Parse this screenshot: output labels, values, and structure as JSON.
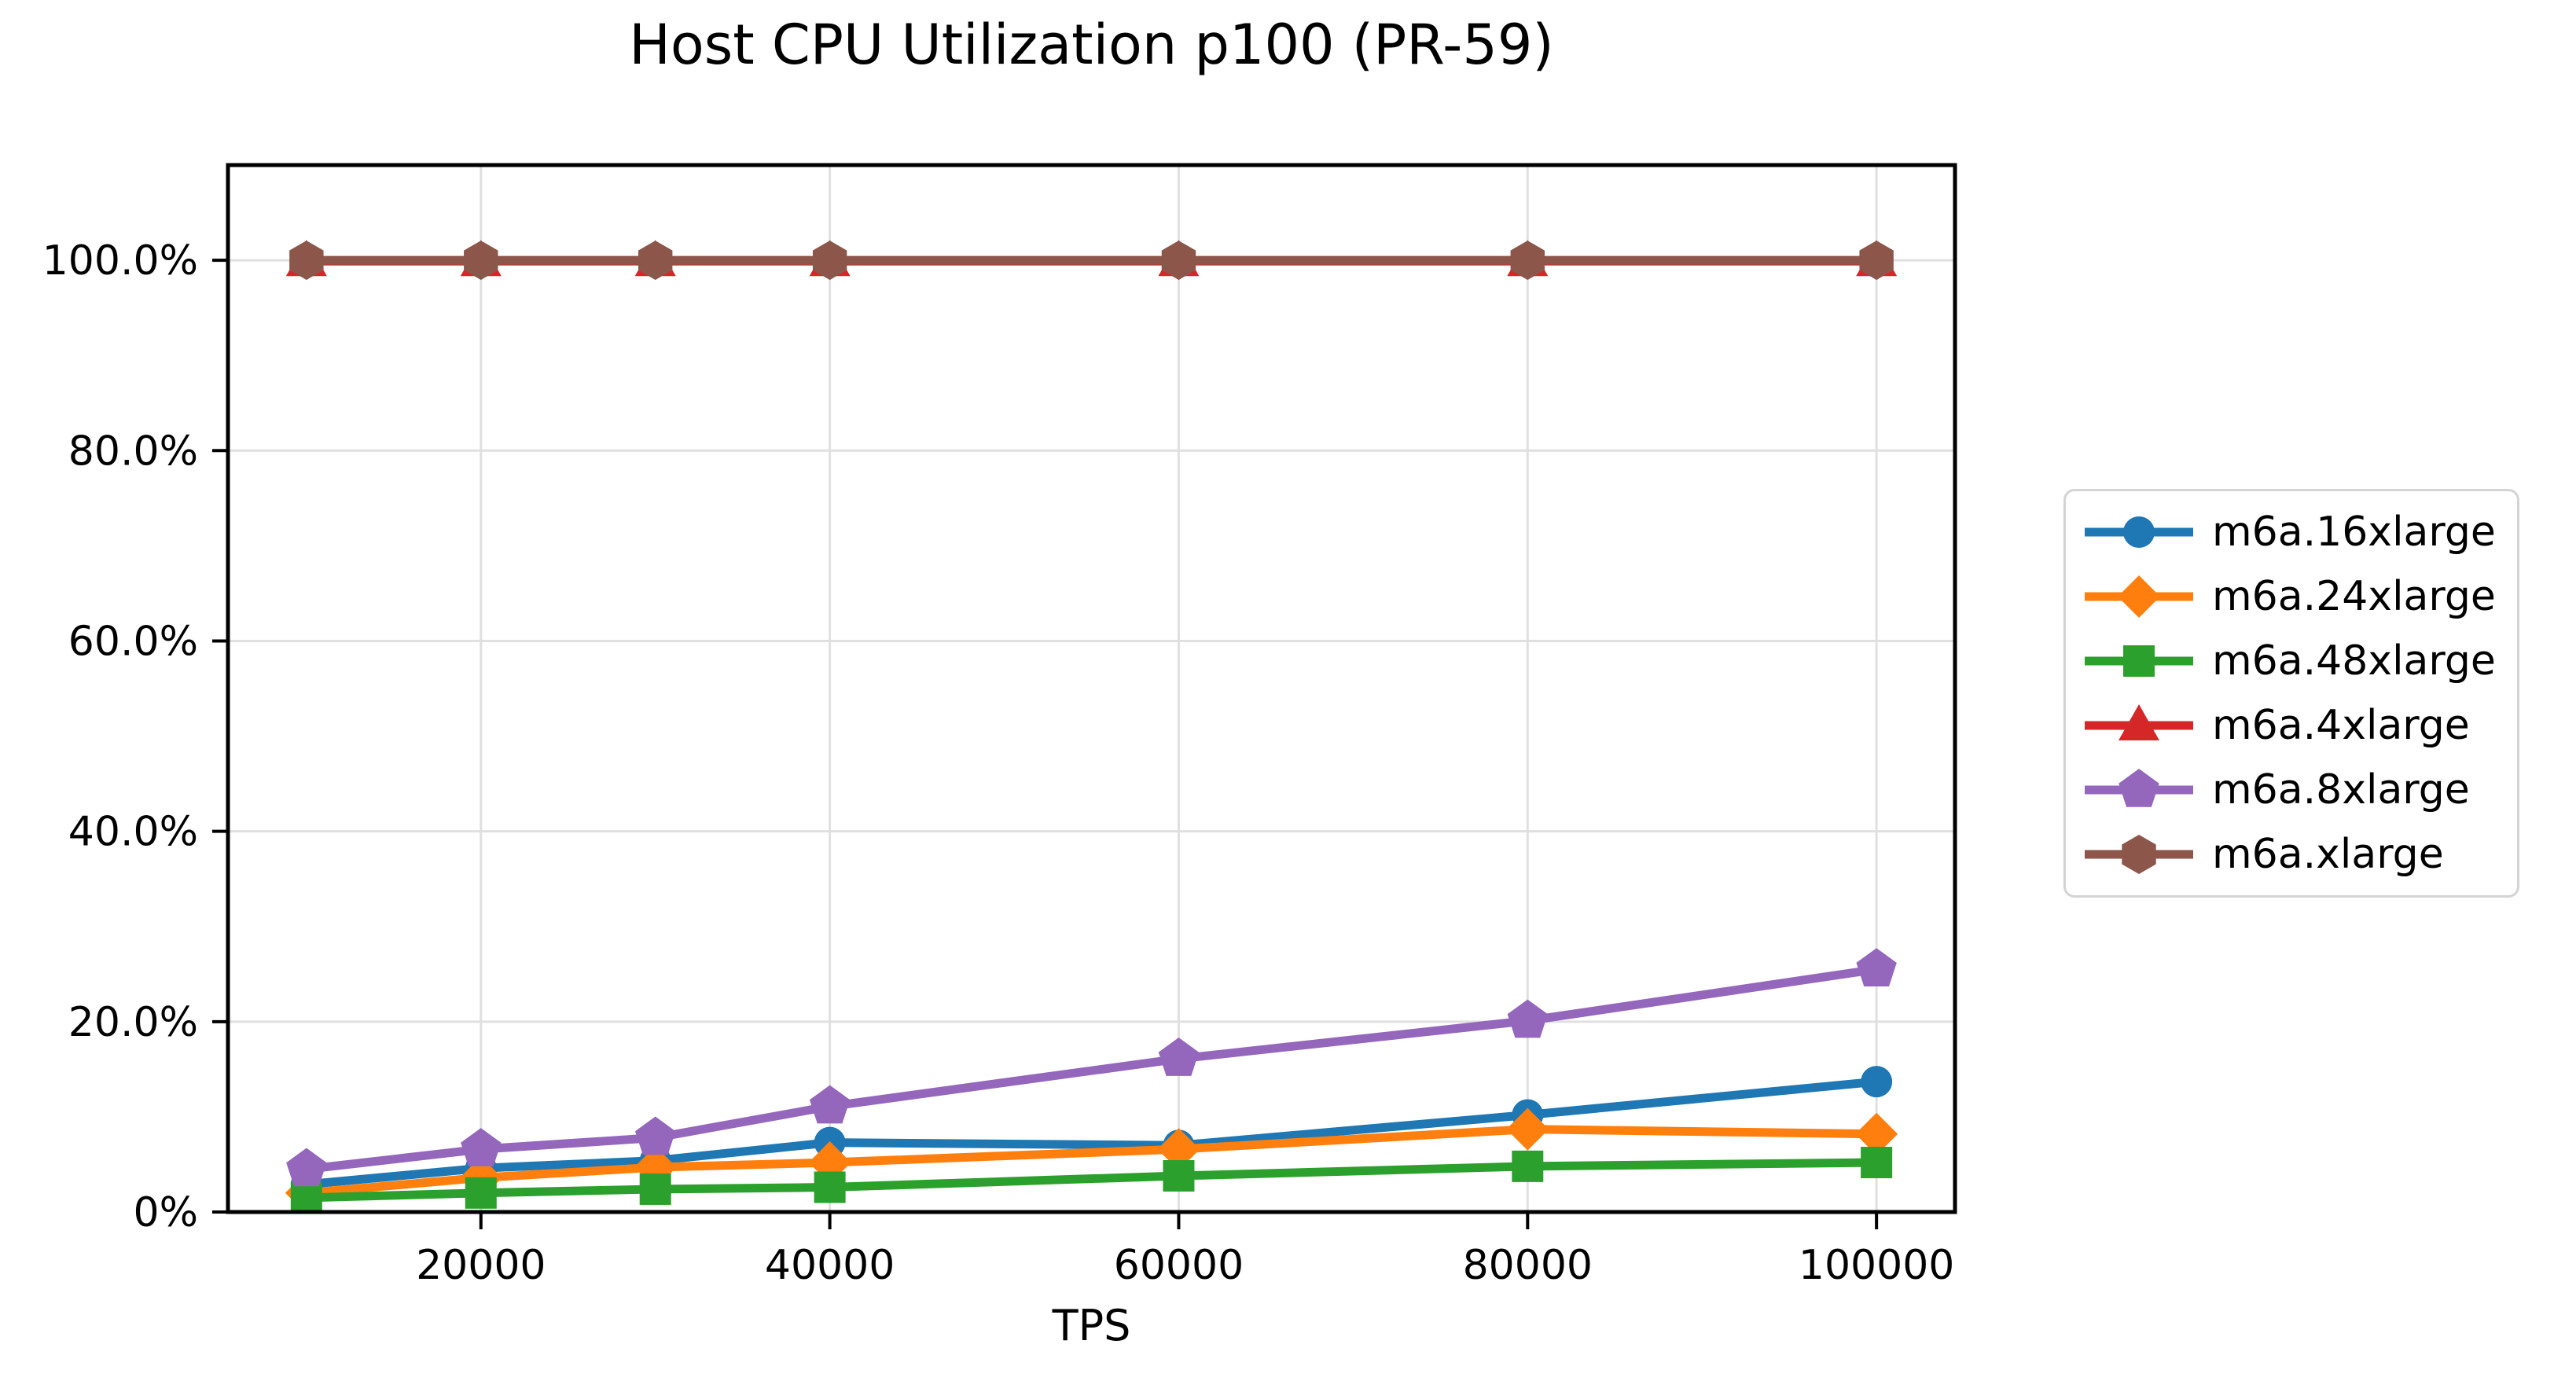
{
  "chart_data": {
    "type": "line",
    "title": "Host CPU Utilization p100 (PR-59)",
    "xlabel": "TPS",
    "ylabel": "",
    "x": [
      10000,
      20000,
      30000,
      40000,
      60000,
      80000,
      100000
    ],
    "xlim": [
      5500,
      104500
    ],
    "ylim": [
      0,
      110
    ],
    "xticks": [
      20000,
      40000,
      60000,
      80000,
      100000
    ],
    "xtick_labels": [
      "20000",
      "40000",
      "60000",
      "80000",
      "100000"
    ],
    "yticks": [
      0,
      20,
      40,
      60,
      80,
      100
    ],
    "ytick_labels": [
      "0%",
      "20.0%",
      "40.0%",
      "60.0%",
      "80.0%",
      "100.0%"
    ],
    "grid": true,
    "legend_position": "right",
    "series": [
      {
        "name": "m6a.16xlarge",
        "color": "#1f77b4",
        "marker": "circle",
        "values": [
          2.9,
          4.6,
          5.4,
          7.3,
          7.0,
          10.2,
          13.7
        ]
      },
      {
        "name": "m6a.24xlarge",
        "color": "#ff7f0e",
        "marker": "diamond",
        "values": [
          2.0,
          3.6,
          4.7,
          5.2,
          6.6,
          8.7,
          8.2
        ]
      },
      {
        "name": "m6a.48xlarge",
        "color": "#2ca02c",
        "marker": "square",
        "values": [
          1.5,
          2.0,
          2.4,
          2.6,
          3.8,
          4.8,
          5.2
        ]
      },
      {
        "name": "m6a.4xlarge",
        "color": "#d62728",
        "marker": "triangle-up",
        "values": [
          99.9,
          99.9,
          99.9,
          99.9,
          99.9,
          99.9,
          99.9
        ]
      },
      {
        "name": "m6a.8xlarge",
        "color": "#9467bd",
        "marker": "pentagon",
        "values": [
          4.5,
          6.6,
          7.8,
          11.1,
          16.1,
          20.1,
          25.5
        ]
      },
      {
        "name": "m6a.xlarge",
        "color": "#8c564b",
        "marker": "hexagon",
        "values": [
          100.0,
          100.0,
          100.0,
          100.0,
          100.0,
          100.0,
          100.0
        ]
      }
    ]
  }
}
